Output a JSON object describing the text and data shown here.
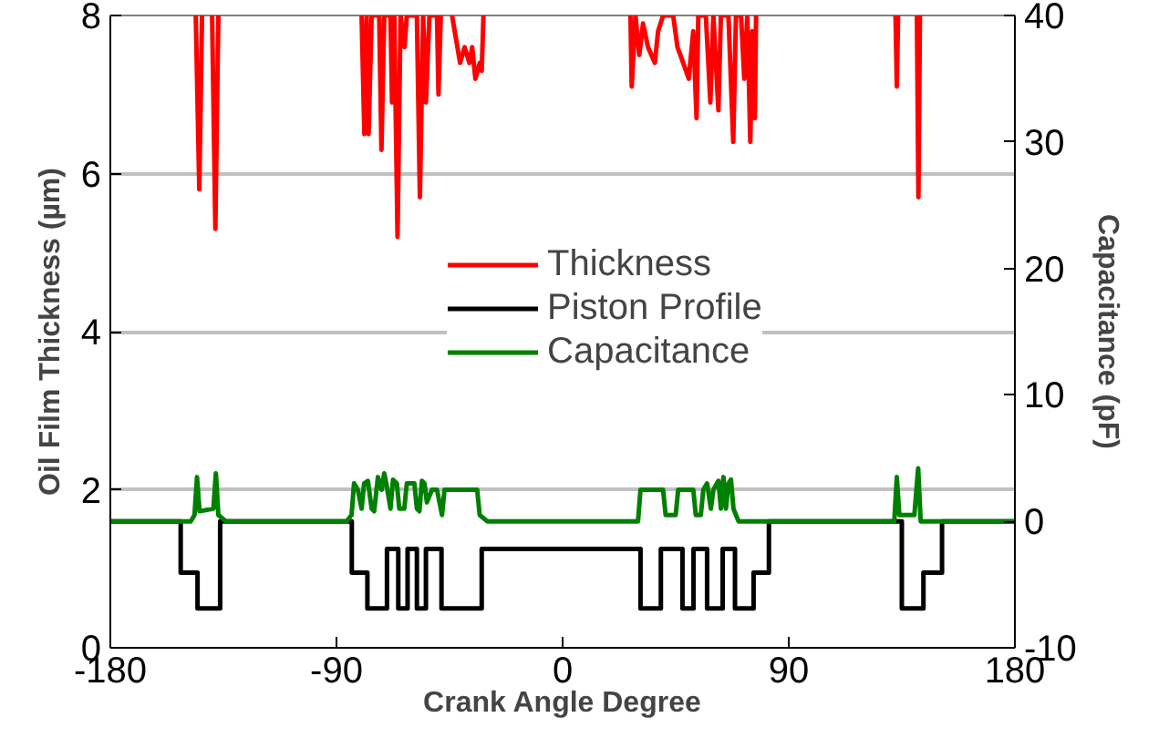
{
  "chart_data": {
    "type": "line",
    "xlabel": "Crank Angle Degree",
    "ylabel": "Oil Film Thickness (µm)",
    "y2label": "Capacitance (pF)",
    "xlim": [
      -180,
      180
    ],
    "xticks": [
      -180,
      -90,
      0,
      90,
      180
    ],
    "ylim": [
      0,
      8
    ],
    "yticks": [
      0,
      2,
      4,
      6,
      8
    ],
    "y2lim": [
      -10,
      40
    ],
    "y2ticks": [
      -10,
      0,
      10,
      20,
      30,
      40
    ],
    "grid": "y",
    "legend": "center",
    "series": [
      {
        "name": "Thickness",
        "color": "#ff0000",
        "x": [
          -146,
          -144.6,
          -143.5,
          null,
          -139.5,
          -138.2,
          -137.5,
          -137,
          null,
          -80,
          -78.9,
          -78,
          -77.2,
          -76,
          -73,
          -72.1,
          -71,
          -68.5,
          -67.9,
          -67,
          -65.7,
          -64.5,
          -62.9,
          -62,
          -58,
          -56.8,
          -55.5,
          -54.4,
          -53,
          -50,
          -49.4,
          -48.5,
          null,
          -44,
          -40.8,
          -39,
          -37.1,
          -36,
          -34.7,
          -33,
          -32.2,
          -31.5,
          null,
          27,
          27.5,
          29,
          30.5,
          32,
          34,
          36.7,
          38,
          40,
          44,
          45.7,
          48,
          50.2,
          52,
          53.3,
          54,
          57,
          58.8,
          60,
          62,
          63,
          66,
          67.9,
          69,
          71,
          72.3,
          73.5,
          74.7,
          75.5,
          76.5,
          77,
          null,
          132.5,
          133,
          133.5,
          null,
          141,
          141.6,
          142.2
        ],
        "values": [
          8,
          5.8,
          8,
          null,
          8,
          5.3,
          6.9,
          8,
          null,
          8,
          6.5,
          8,
          6.5,
          8,
          8,
          6.3,
          8,
          8,
          6.9,
          8,
          5.2,
          8,
          7.6,
          8,
          8,
          5.7,
          8,
          6.9,
          8,
          8,
          7.0,
          8,
          null,
          8,
          7.4,
          7.6,
          7.4,
          7.6,
          7.2,
          7.4,
          7.3,
          8,
          null,
          8,
          7.1,
          8,
          7.5,
          7.9,
          7.6,
          7.4,
          7.8,
          8,
          8,
          7.6,
          7.4,
          7.2,
          7.8,
          6.7,
          8,
          8,
          6.9,
          8,
          6.8,
          8,
          8,
          6.4,
          8,
          8,
          7.2,
          8,
          6.4,
          7.8,
          6.7,
          8,
          null,
          8,
          7.1,
          8,
          null,
          8,
          5.7,
          8
        ]
      },
      {
        "name": "Piston Profile",
        "color": "#000000",
        "x": [
          -180,
          -152,
          -152,
          -145.3,
          -145.3,
          -136.3,
          -136.3,
          -83.9,
          -83.9,
          -77.7,
          -77.7,
          -69.9,
          -69.9,
          -65.4,
          -65.4,
          -61.7,
          -61.7,
          -58,
          -58,
          -54.4,
          -54.4,
          -48.2,
          -48.2,
          -32.2,
          -32.2,
          31,
          31,
          39.1,
          39.1,
          47.7,
          47.7,
          52.1,
          52.1,
          57.5,
          57.5,
          63.7,
          63.7,
          68.6,
          68.6,
          76,
          76,
          82.1,
          82.1,
          135,
          135,
          143.6,
          143.6,
          151,
          151,
          180
        ],
        "values": [
          1.6,
          1.6,
          0.95,
          0.95,
          0.5,
          0.5,
          1.6,
          1.6,
          0.95,
          0.95,
          0.5,
          0.5,
          1.25,
          1.25,
          0.5,
          0.5,
          1.25,
          1.25,
          0.5,
          0.5,
          1.25,
          1.25,
          0.5,
          0.5,
          1.25,
          1.25,
          0.5,
          0.5,
          1.25,
          1.25,
          0.5,
          0.5,
          1.25,
          1.25,
          0.5,
          0.5,
          1.25,
          1.25,
          0.5,
          0.5,
          0.95,
          0.95,
          1.6,
          1.6,
          0.5,
          0.5,
          0.95,
          0.95,
          1.6,
          1.6
        ]
      },
      {
        "name": "Capacitance",
        "color": "#008000",
        "axis": "y2",
        "x": [
          -180,
          -148,
          -146.5,
          -145.5,
          -144.5,
          -139,
          -138,
          -137,
          -134,
          -86,
          -84,
          -83,
          -81.5,
          -80,
          -79,
          -77.5,
          -76,
          -75,
          -73.5,
          -72,
          -71,
          -70,
          -68.5,
          -67.5,
          -66,
          -65,
          -63,
          -62,
          -59,
          -58,
          -57,
          -56,
          -55,
          -54,
          -52,
          -50,
          -48,
          -47,
          -34,
          -33,
          -30,
          30,
          31,
          40,
          41,
          45,
          46,
          52,
          53,
          55,
          56,
          57.5,
          59,
          60,
          62,
          63,
          64,
          65,
          66,
          67,
          68,
          69,
          70,
          132,
          133,
          134,
          140,
          141.5,
          142.5,
          180
        ],
        "values": [
          0,
          0,
          0.5,
          3.5,
          0.8,
          1,
          3.8,
          0.5,
          0,
          0,
          0.5,
          3.0,
          2.5,
          1,
          3.0,
          3.2,
          1,
          0.8,
          3.5,
          2.5,
          3.8,
          2.8,
          1.0,
          3.3,
          3.0,
          1.0,
          1,
          3.0,
          3.0,
          1.0,
          0.8,
          3.2,
          3.0,
          1.5,
          2.5,
          2.5,
          0.5,
          2.5,
          2.5,
          0.5,
          0,
          0,
          2.5,
          2.5,
          0.5,
          0.5,
          2.5,
          2.5,
          0.5,
          0.5,
          2.5,
          3.0,
          1,
          2.5,
          3.2,
          1,
          3.5,
          1,
          3.0,
          3.3,
          1,
          0.5,
          0,
          0,
          3.5,
          0.5,
          0.5,
          4.2,
          0,
          0
        ]
      }
    ]
  }
}
